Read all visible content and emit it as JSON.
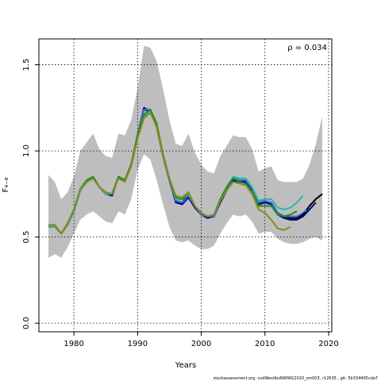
{
  "chart_data": {
    "type": "line",
    "xlabel": "Years",
    "ylabel": "F₄₋₈",
    "annotation": "ρ = 0.034",
    "footer": "stockassessment.org, codWestIbsNWWG2020_sm003, r12635 , git: 5b334405cda7",
    "xlim": [
      1974.5,
      2020.5
    ],
    "ylim": [
      -0.05,
      1.65
    ],
    "xticks": [
      1980,
      1990,
      2000,
      2010,
      2020
    ],
    "yticks": [
      0.0,
      0.5,
      1.0,
      1.5
    ],
    "ytick_labels": [
      "0.0",
      "0.5",
      "1.0",
      "1.5"
    ],
    "grid": true,
    "band_color": "#bebebe",
    "confidence_band": {
      "x": [
        1976,
        1977,
        1978,
        1979,
        1980,
        1981,
        1982,
        1983,
        1984,
        1985,
        1986,
        1987,
        1988,
        1989,
        1990,
        1991,
        1992,
        1993,
        1994,
        1995,
        1996,
        1997,
        1998,
        1999,
        2000,
        2001,
        2002,
        2003,
        2004,
        2005,
        2006,
        2007,
        2008,
        2009,
        2010,
        2011,
        2012,
        2013,
        2014,
        2015,
        2016,
        2017,
        2018,
        2019
      ],
      "upper": [
        0.86,
        0.82,
        0.72,
        0.76,
        0.85,
        1.0,
        1.05,
        1.1,
        1.01,
        0.97,
        0.96,
        1.1,
        1.09,
        1.18,
        1.36,
        1.61,
        1.6,
        1.52,
        1.36,
        1.18,
        1.04,
        1.03,
        1.1,
        0.99,
        0.92,
        0.88,
        0.87,
        0.97,
        1.03,
        1.09,
        1.08,
        1.08,
        1.01,
        0.88,
        0.9,
        0.91,
        0.83,
        0.82,
        0.82,
        0.82,
        0.84,
        0.92,
        1.04,
        1.2
      ],
      "lower": [
        0.38,
        0.4,
        0.38,
        0.44,
        0.52,
        0.6,
        0.63,
        0.65,
        0.62,
        0.59,
        0.58,
        0.65,
        0.63,
        0.72,
        0.89,
        0.98,
        0.95,
        0.83,
        0.69,
        0.56,
        0.48,
        0.47,
        0.48,
        0.45,
        0.43,
        0.43,
        0.45,
        0.52,
        0.58,
        0.63,
        0.62,
        0.63,
        0.59,
        0.52,
        0.53,
        0.53,
        0.49,
        0.47,
        0.46,
        0.46,
        0.47,
        0.49,
        0.5,
        0.48
      ]
    },
    "series": [
      {
        "color": "#000000",
        "dashed": false,
        "x": [
          1976,
          1977,
          1978,
          1979,
          1980,
          1981,
          1982,
          1983,
          1984,
          1985,
          1986,
          1987,
          1988,
          1989,
          1990,
          1991,
          1992,
          1993,
          1994,
          1995,
          1996,
          1997,
          1998,
          1999,
          2000,
          2001,
          2002,
          2003,
          2004,
          2005,
          2006,
          2007,
          2008,
          2009,
          2010,
          2011,
          2012,
          2013,
          2014,
          2015,
          2016,
          2017,
          2018,
          2019
        ],
        "values": [
          0.56,
          0.56,
          0.52,
          0.57,
          0.65,
          0.77,
          0.82,
          0.85,
          0.79,
          0.75,
          0.75,
          0.85,
          0.83,
          0.92,
          1.09,
          1.24,
          1.23,
          1.14,
          0.97,
          0.83,
          0.71,
          0.7,
          0.75,
          0.68,
          0.63,
          0.62,
          0.62,
          0.71,
          0.77,
          0.83,
          0.82,
          0.82,
          0.77,
          0.69,
          0.7,
          0.7,
          0.64,
          0.62,
          0.61,
          0.61,
          0.63,
          0.68,
          0.72,
          0.75
        ]
      },
      {
        "color": "#00008b",
        "dashed": false,
        "x": [
          1976,
          1977,
          1978,
          1979,
          1980,
          1981,
          1982,
          1983,
          1984,
          1985,
          1986,
          1987,
          1988,
          1989,
          1990,
          1991,
          1992,
          1993,
          1994,
          1995,
          1996,
          1997,
          1998,
          1999,
          2000,
          2001,
          2002,
          2003,
          2004,
          2005,
          2006,
          2007,
          2008,
          2009,
          2010,
          2011,
          2012,
          2013,
          2014,
          2015,
          2016,
          2017,
          2018
        ],
        "values": [
          0.56,
          0.56,
          0.52,
          0.57,
          0.65,
          0.77,
          0.82,
          0.85,
          0.79,
          0.75,
          0.74,
          0.85,
          0.83,
          0.92,
          1.09,
          1.25,
          1.23,
          1.14,
          0.97,
          0.83,
          0.7,
          0.69,
          0.73,
          0.67,
          0.63,
          0.61,
          0.62,
          0.7,
          0.77,
          0.83,
          0.82,
          0.82,
          0.77,
          0.69,
          0.7,
          0.69,
          0.63,
          0.61,
          0.6,
          0.6,
          0.62,
          0.66,
          0.7
        ]
      },
      {
        "color": "#3a6ad0",
        "dashed": false,
        "x": [
          1976,
          1977,
          1978,
          1979,
          1980,
          1981,
          1982,
          1983,
          1984,
          1985,
          1986,
          1987,
          1988,
          1989,
          1990,
          1991,
          1992,
          1993,
          1994,
          1995,
          1996,
          1997,
          1998,
          1999,
          2000,
          2001,
          2002,
          2003,
          2004,
          2005,
          2006,
          2007,
          2008,
          2009,
          2010,
          2011,
          2012,
          2013,
          2014,
          2015,
          2016,
          2017
        ],
        "values": [
          0.56,
          0.56,
          0.52,
          0.57,
          0.65,
          0.77,
          0.82,
          0.85,
          0.79,
          0.75,
          0.75,
          0.85,
          0.83,
          0.92,
          1.09,
          1.24,
          1.24,
          1.15,
          0.97,
          0.83,
          0.71,
          0.7,
          0.74,
          0.68,
          0.63,
          0.62,
          0.62,
          0.71,
          0.78,
          0.84,
          0.83,
          0.83,
          0.78,
          0.7,
          0.71,
          0.7,
          0.64,
          0.62,
          0.62,
          0.62,
          0.64,
          0.67
        ]
      },
      {
        "color": "#2ab7a9",
        "dashed": false,
        "x": [
          1976,
          1977,
          1978,
          1979,
          1980,
          1981,
          1982,
          1983,
          1984,
          1985,
          1986,
          1987,
          1988,
          1989,
          1990,
          1991,
          1992,
          1993,
          1994,
          1995,
          1996,
          1997,
          1998,
          1999,
          2000,
          2001,
          2002,
          2003,
          2004,
          2005,
          2006,
          2007,
          2008,
          2009,
          2010,
          2011,
          2012,
          2013,
          2014,
          2015,
          2016
        ],
        "values": [
          0.56,
          0.56,
          0.52,
          0.57,
          0.65,
          0.77,
          0.82,
          0.85,
          0.79,
          0.75,
          0.75,
          0.85,
          0.83,
          0.92,
          1.08,
          1.2,
          1.23,
          1.15,
          0.98,
          0.84,
          0.72,
          0.72,
          0.75,
          0.68,
          0.64,
          0.62,
          0.63,
          0.72,
          0.79,
          0.85,
          0.84,
          0.84,
          0.79,
          0.71,
          0.72,
          0.72,
          0.67,
          0.66,
          0.67,
          0.7,
          0.74
        ]
      },
      {
        "color": "#228b22",
        "dashed": false,
        "x": [
          1976,
          1977,
          1978,
          1979,
          1980,
          1981,
          1982,
          1983,
          1984,
          1985,
          1986,
          1987,
          1988,
          1989,
          1990,
          1991,
          1992,
          1993,
          1994,
          1995,
          1996,
          1997,
          1998,
          1999,
          2000,
          2001,
          2002,
          2003,
          2004,
          2005,
          2006,
          2007,
          2008,
          2009,
          2010,
          2011,
          2012,
          2013,
          2014,
          2015
        ],
        "values": [
          0.57,
          0.57,
          0.52,
          0.58,
          0.66,
          0.78,
          0.83,
          0.85,
          0.79,
          0.76,
          0.75,
          0.85,
          0.83,
          0.92,
          1.09,
          1.21,
          1.24,
          1.16,
          0.98,
          0.84,
          0.73,
          0.72,
          0.76,
          0.68,
          0.64,
          0.62,
          0.63,
          0.72,
          0.79,
          0.84,
          0.82,
          0.81,
          0.76,
          0.68,
          0.68,
          0.68,
          0.63,
          0.62,
          0.63,
          0.65
        ]
      },
      {
        "color": "#8b8b1a",
        "dashed": false,
        "x": [
          1976,
          1977,
          1978,
          1979,
          1980,
          1981,
          1982,
          1983,
          1984,
          1985,
          1986,
          1987,
          1988,
          1989,
          1990,
          1991,
          1992,
          1993,
          1994,
          1995,
          1996,
          1997,
          1998,
          1999,
          2000,
          2001,
          2002,
          2003,
          2004,
          2005,
          2006,
          2007,
          2008,
          2009,
          2010,
          2011,
          2012,
          2013,
          2014
        ],
        "values": [
          0.57,
          0.57,
          0.52,
          0.58,
          0.66,
          0.78,
          0.82,
          0.84,
          0.79,
          0.76,
          0.75,
          0.84,
          0.82,
          0.91,
          1.07,
          1.19,
          1.22,
          1.14,
          0.97,
          0.84,
          0.74,
          0.73,
          0.76,
          0.68,
          0.64,
          0.62,
          0.63,
          0.71,
          0.77,
          0.82,
          0.81,
          0.8,
          0.75,
          0.66,
          0.64,
          0.6,
          0.55,
          0.54,
          0.56
        ]
      },
      {
        "color": "#000000",
        "dashed": true,
        "x": [
          2016,
          2017,
          2018,
          2019
        ],
        "values": [
          0.63,
          0.68,
          0.72,
          0.75
        ]
      }
    ]
  }
}
